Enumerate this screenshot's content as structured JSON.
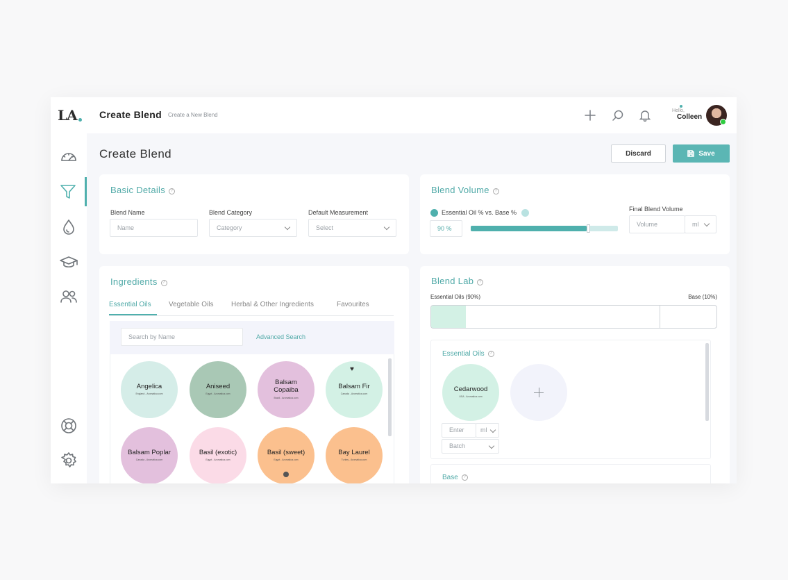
{
  "brand": {
    "logo_text": "LA"
  },
  "topbar": {
    "title": "Create Blend",
    "subtitle": "Create a New Blend",
    "greeting": "Hello,",
    "user_name": "Colleen"
  },
  "sidebar": {
    "items": [
      {
        "name": "dashboard",
        "icon": "speedometer-icon"
      },
      {
        "name": "blends",
        "icon": "funnel-icon",
        "active": true
      },
      {
        "name": "oils",
        "icon": "droplet-icon"
      },
      {
        "name": "education",
        "icon": "graduation-cap-icon"
      },
      {
        "name": "community",
        "icon": "users-icon"
      },
      {
        "name": "support",
        "icon": "lifebuoy-icon"
      },
      {
        "name": "settings",
        "icon": "gear-icon"
      }
    ]
  },
  "page": {
    "title": "Create Blend",
    "discard_label": "Discard",
    "save_label": "Save"
  },
  "basic_details": {
    "title": "Basic Details",
    "name_label": "Blend Name",
    "name_placeholder": "Name",
    "category_label": "Blend Category",
    "category_placeholder": "Category",
    "measurement_label": "Default Measurement",
    "measurement_placeholder": "Select"
  },
  "blend_volume": {
    "title": "Blend Volume",
    "ratio_label": "Essential Oil % vs. Base %",
    "ratio_value": "90 %",
    "ratio_percent": 90,
    "final_label": "Final Blend Volume",
    "volume_placeholder": "Volume",
    "unit": "ml"
  },
  "ingredients": {
    "title": "Ingredients",
    "tabs": [
      "Essential Oils",
      "Vegetable Oils",
      "Herbal & Other Ingredients",
      "Favourites"
    ],
    "search_placeholder": "Search by Name",
    "advanced_search": "Advanced Search",
    "oils": [
      {
        "name": "Angelica",
        "origin": "England - Aromatica.com",
        "color": "#d5ede8"
      },
      {
        "name": "Aniseed",
        "origin": "Egypt - Aromatica.com",
        "color": "#a9c8b5"
      },
      {
        "name": "Balsam Copaiba",
        "origin": "Brazil - Aromatica.com",
        "color": "#e3c0dd"
      },
      {
        "name": "Balsam Fir",
        "origin": "Canada - Aromatica.com",
        "color": "#d3f1e5",
        "favourite": true
      },
      {
        "name": "Balsam Poplar",
        "origin": "Canada - Aromatica.com",
        "color": "#e3c0dd"
      },
      {
        "name": "Basil (exotic)",
        "origin": "Egypt - Aromatica.com",
        "color": "#fbdbe7"
      },
      {
        "name": "Basil (sweet)",
        "origin": "Egypt - Aromatica.com",
        "color": "#fbc08e",
        "globe": true
      },
      {
        "name": "Bay Laurel",
        "origin": "Turkey - Aromatica.com",
        "color": "#fbc08e"
      }
    ]
  },
  "blend_lab": {
    "title": "Blend Lab",
    "essential_label": "Essential Oils (90%)",
    "base_label": "Base (10%)",
    "essential_percent": 90,
    "essential_section": "Essential Oils",
    "selected_oil": {
      "name": "Cedarwood",
      "origin": "USA - Aromatica.com",
      "color": "#d3f1e5"
    },
    "enter_placeholder": "Enter",
    "unit": "ml",
    "batch_placeholder": "Batch",
    "base_section": "Base"
  }
}
